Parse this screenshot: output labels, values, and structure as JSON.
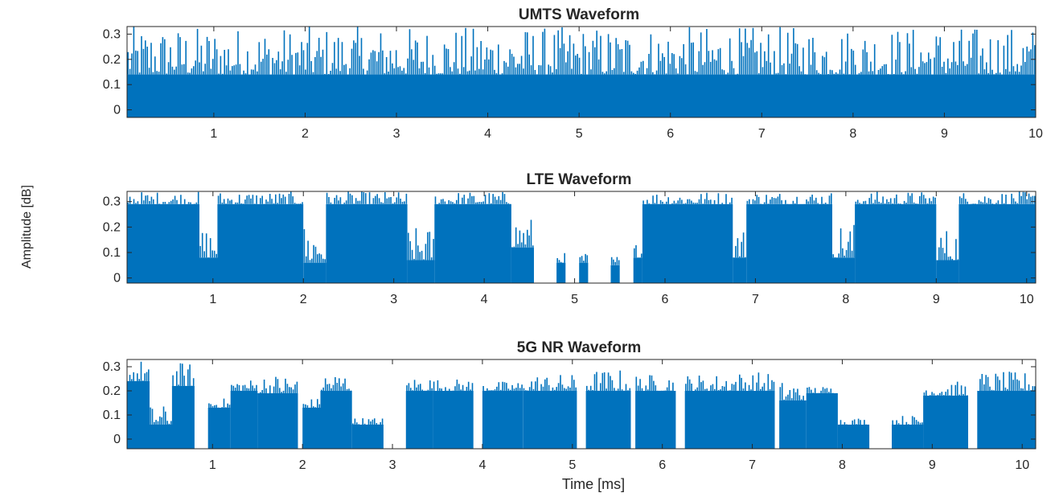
{
  "figure": {
    "ylabel": "Amplitude [dB]",
    "xlabel": "Time [ms]",
    "series_color": "#0072BD"
  },
  "chart_data": [
    {
      "type": "bar",
      "title": "UMTS Waveform",
      "xlabel": "",
      "ylabel": "Amplitude [dB]",
      "xlim": [
        0.05,
        10
      ],
      "ylim": [
        -0.03,
        0.33
      ],
      "xticks": [
        1,
        2,
        3,
        4,
        5,
        6,
        7,
        8,
        9,
        10
      ],
      "yticks": [
        0,
        0.1,
        0.2,
        0.3
      ],
      "ytick_labels": [
        "0",
        "0.1",
        "0.2",
        "0.3"
      ],
      "grid": false,
      "segments": [
        {
          "x0": 0.05,
          "x1": 10,
          "base": 0.14,
          "peak": 0.33
        }
      ]
    },
    {
      "type": "bar",
      "title": "LTE Waveform",
      "xlabel": "",
      "ylabel": "Amplitude [dB]",
      "xlim": [
        0.05,
        10.1
      ],
      "ylim": [
        -0.02,
        0.34
      ],
      "xticks": [
        1,
        2,
        3,
        4,
        5,
        6,
        7,
        8,
        9,
        10
      ],
      "yticks": [
        0,
        0.1,
        0.2,
        0.3
      ],
      "ytick_labels": [
        "0",
        "0.1",
        "0.2",
        "0.3"
      ],
      "grid": false,
      "segments": [
        {
          "x0": 0.05,
          "x1": 0.85,
          "base": 0.29,
          "peak": 0.34
        },
        {
          "x0": 0.85,
          "x1": 1.05,
          "base": 0.08,
          "peak": 0.2
        },
        {
          "x0": 1.05,
          "x1": 2.0,
          "base": 0.29,
          "peak": 0.34
        },
        {
          "x0": 2.0,
          "x1": 2.25,
          "base": 0.06,
          "peak": 0.22
        },
        {
          "x0": 2.25,
          "x1": 3.15,
          "base": 0.29,
          "peak": 0.34
        },
        {
          "x0": 3.15,
          "x1": 3.45,
          "base": 0.07,
          "peak": 0.2
        },
        {
          "x0": 3.45,
          "x1": 4.3,
          "base": 0.29,
          "peak": 0.34
        },
        {
          "x0": 4.3,
          "x1": 4.55,
          "base": 0.12,
          "peak": 0.24
        },
        {
          "x0": 4.8,
          "x1": 4.9,
          "base": 0.06,
          "peak": 0.1
        },
        {
          "x0": 5.05,
          "x1": 5.15,
          "base": 0.06,
          "peak": 0.1
        },
        {
          "x0": 5.4,
          "x1": 5.5,
          "base": 0.05,
          "peak": 0.09
        },
        {
          "x0": 5.65,
          "x1": 5.75,
          "base": 0.08,
          "peak": 0.14
        },
        {
          "x0": 5.75,
          "x1": 6.75,
          "base": 0.29,
          "peak": 0.34
        },
        {
          "x0": 6.75,
          "x1": 6.9,
          "base": 0.08,
          "peak": 0.2
        },
        {
          "x0": 6.9,
          "x1": 7.85,
          "base": 0.29,
          "peak": 0.34
        },
        {
          "x0": 7.85,
          "x1": 8.1,
          "base": 0.08,
          "peak": 0.22
        },
        {
          "x0": 8.1,
          "x1": 9.0,
          "base": 0.29,
          "peak": 0.34
        },
        {
          "x0": 9.0,
          "x1": 9.25,
          "base": 0.07,
          "peak": 0.2
        },
        {
          "x0": 9.25,
          "x1": 10.1,
          "base": 0.29,
          "peak": 0.34
        }
      ]
    },
    {
      "type": "bar",
      "title": "5G NR Waveform",
      "xlabel": "Time [ms]",
      "ylabel": "Amplitude [dB]",
      "xlim": [
        0.05,
        10.15
      ],
      "ylim": [
        -0.04,
        0.33
      ],
      "xticks": [
        1,
        2,
        3,
        4,
        5,
        6,
        7,
        8,
        9,
        10
      ],
      "yticks": [
        0,
        0.1,
        0.2,
        0.3
      ],
      "ytick_labels": [
        "0",
        "0.1",
        "0.2",
        "0.3"
      ],
      "grid": false,
      "segments": [
        {
          "x0": 0.05,
          "x1": 0.3,
          "base": 0.24,
          "peak": 0.33
        },
        {
          "x0": 0.3,
          "x1": 0.55,
          "base": 0.06,
          "peak": 0.14
        },
        {
          "x0": 0.55,
          "x1": 0.8,
          "base": 0.22,
          "peak": 0.32
        },
        {
          "x0": 0.95,
          "x1": 1.2,
          "base": 0.13,
          "peak": 0.17
        },
        {
          "x0": 1.2,
          "x1": 1.5,
          "base": 0.2,
          "peak": 0.25
        },
        {
          "x0": 1.5,
          "x1": 1.95,
          "base": 0.19,
          "peak": 0.27
        },
        {
          "x0": 2.0,
          "x1": 2.2,
          "base": 0.13,
          "peak": 0.17
        },
        {
          "x0": 2.2,
          "x1": 2.55,
          "base": 0.2,
          "peak": 0.28
        },
        {
          "x0": 2.55,
          "x1": 2.9,
          "base": 0.06,
          "peak": 0.09
        },
        {
          "x0": 3.15,
          "x1": 3.45,
          "base": 0.2,
          "peak": 0.26
        },
        {
          "x0": 3.45,
          "x1": 3.9,
          "base": 0.2,
          "peak": 0.25
        },
        {
          "x0": 4.0,
          "x1": 4.45,
          "base": 0.2,
          "peak": 0.24
        },
        {
          "x0": 4.45,
          "x1": 5.05,
          "base": 0.2,
          "peak": 0.27
        },
        {
          "x0": 5.15,
          "x1": 5.65,
          "base": 0.2,
          "peak": 0.29
        },
        {
          "x0": 5.7,
          "x1": 6.15,
          "base": 0.2,
          "peak": 0.27
        },
        {
          "x0": 6.25,
          "x1": 6.7,
          "base": 0.2,
          "peak": 0.27
        },
        {
          "x0": 6.7,
          "x1": 7.25,
          "base": 0.2,
          "peak": 0.28
        },
        {
          "x0": 7.3,
          "x1": 7.6,
          "base": 0.16,
          "peak": 0.24
        },
        {
          "x0": 7.6,
          "x1": 7.95,
          "base": 0.19,
          "peak": 0.22
        },
        {
          "x0": 7.95,
          "x1": 8.3,
          "base": 0.06,
          "peak": 0.09
        },
        {
          "x0": 8.55,
          "x1": 8.9,
          "base": 0.06,
          "peak": 0.1
        },
        {
          "x0": 8.9,
          "x1": 9.4,
          "base": 0.18,
          "peak": 0.24
        },
        {
          "x0": 9.5,
          "x1": 10.15,
          "base": 0.2,
          "peak": 0.28
        }
      ]
    }
  ]
}
